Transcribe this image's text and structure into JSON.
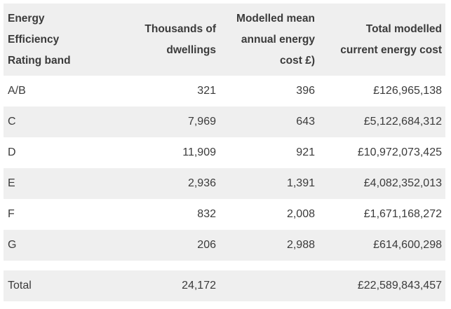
{
  "table": {
    "headers": {
      "band": [
        "Energy",
        "Efficiency",
        "Rating band"
      ],
      "dwellings": [
        "Thousands of",
        "dwellings"
      ],
      "mean_cost": [
        "Modelled mean",
        "annual energy",
        "cost £)"
      ],
      "total_cost": [
        "Total modelled",
        "current energy cost"
      ]
    },
    "rows": [
      {
        "band": "A/B",
        "dwellings": "321",
        "mean_cost": "396",
        "total_cost": "£126,965,138"
      },
      {
        "band": "C",
        "dwellings": "7,969",
        "mean_cost": "643",
        "total_cost": "£5,122,684,312"
      },
      {
        "band": "D",
        "dwellings": "11,909",
        "mean_cost": "921",
        "total_cost": "£10,972,073,425"
      },
      {
        "band": "E",
        "dwellings": "2,936",
        "mean_cost": "1,391",
        "total_cost": "£4,082,352,013"
      },
      {
        "band": "F",
        "dwellings": "832",
        "mean_cost": "2,008",
        "total_cost": "£1,671,168,272"
      },
      {
        "band": "G",
        "dwellings": "206",
        "mean_cost": "2,988",
        "total_cost": "£614,600,298"
      }
    ],
    "total": {
      "label": "Total",
      "dwellings": "24,172",
      "mean_cost": "",
      "total_cost": "£22,589,843,457"
    }
  }
}
